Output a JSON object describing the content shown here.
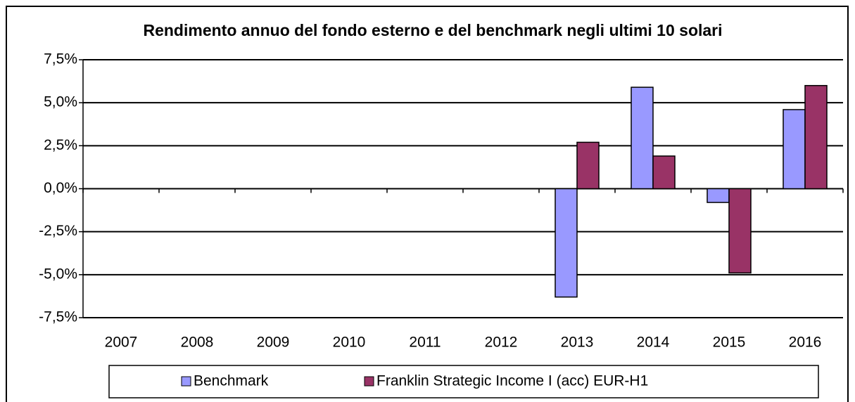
{
  "chart_data": {
    "type": "bar",
    "title": "Rendimento annuo del fondo esterno e del benchmark negli ultimi  10 solari",
    "categories": [
      "2007",
      "2008",
      "2009",
      "2010",
      "2011",
      "2012",
      "2013",
      "2014",
      "2015",
      "2016"
    ],
    "series": [
      {
        "name": "Benchmark",
        "color": "#9999ff",
        "values": [
          null,
          null,
          null,
          null,
          null,
          null,
          -6.3,
          5.9,
          -0.8,
          4.6
        ]
      },
      {
        "name": "Franklin Strategic Income I (acc) EUR-H1",
        "color": "#993366",
        "values": [
          null,
          null,
          null,
          null,
          null,
          null,
          2.7,
          1.9,
          -4.9,
          6.0
        ]
      }
    ],
    "ylim": [
      -7.5,
      7.5
    ],
    "yticks": [
      {
        "value": -7.5,
        "label": "-7,5%"
      },
      {
        "value": -5,
        "label": "-5,0%"
      },
      {
        "value": -2.5,
        "label": "-2,5%"
      },
      {
        "value": 0,
        "label": "0,0%"
      },
      {
        "value": 2.5,
        "label": "2,5%"
      },
      {
        "value": 5,
        "label": "5,0%"
      },
      {
        "value": 7.5,
        "label": "7,5%"
      }
    ],
    "grid": true,
    "legend": "bottom"
  }
}
